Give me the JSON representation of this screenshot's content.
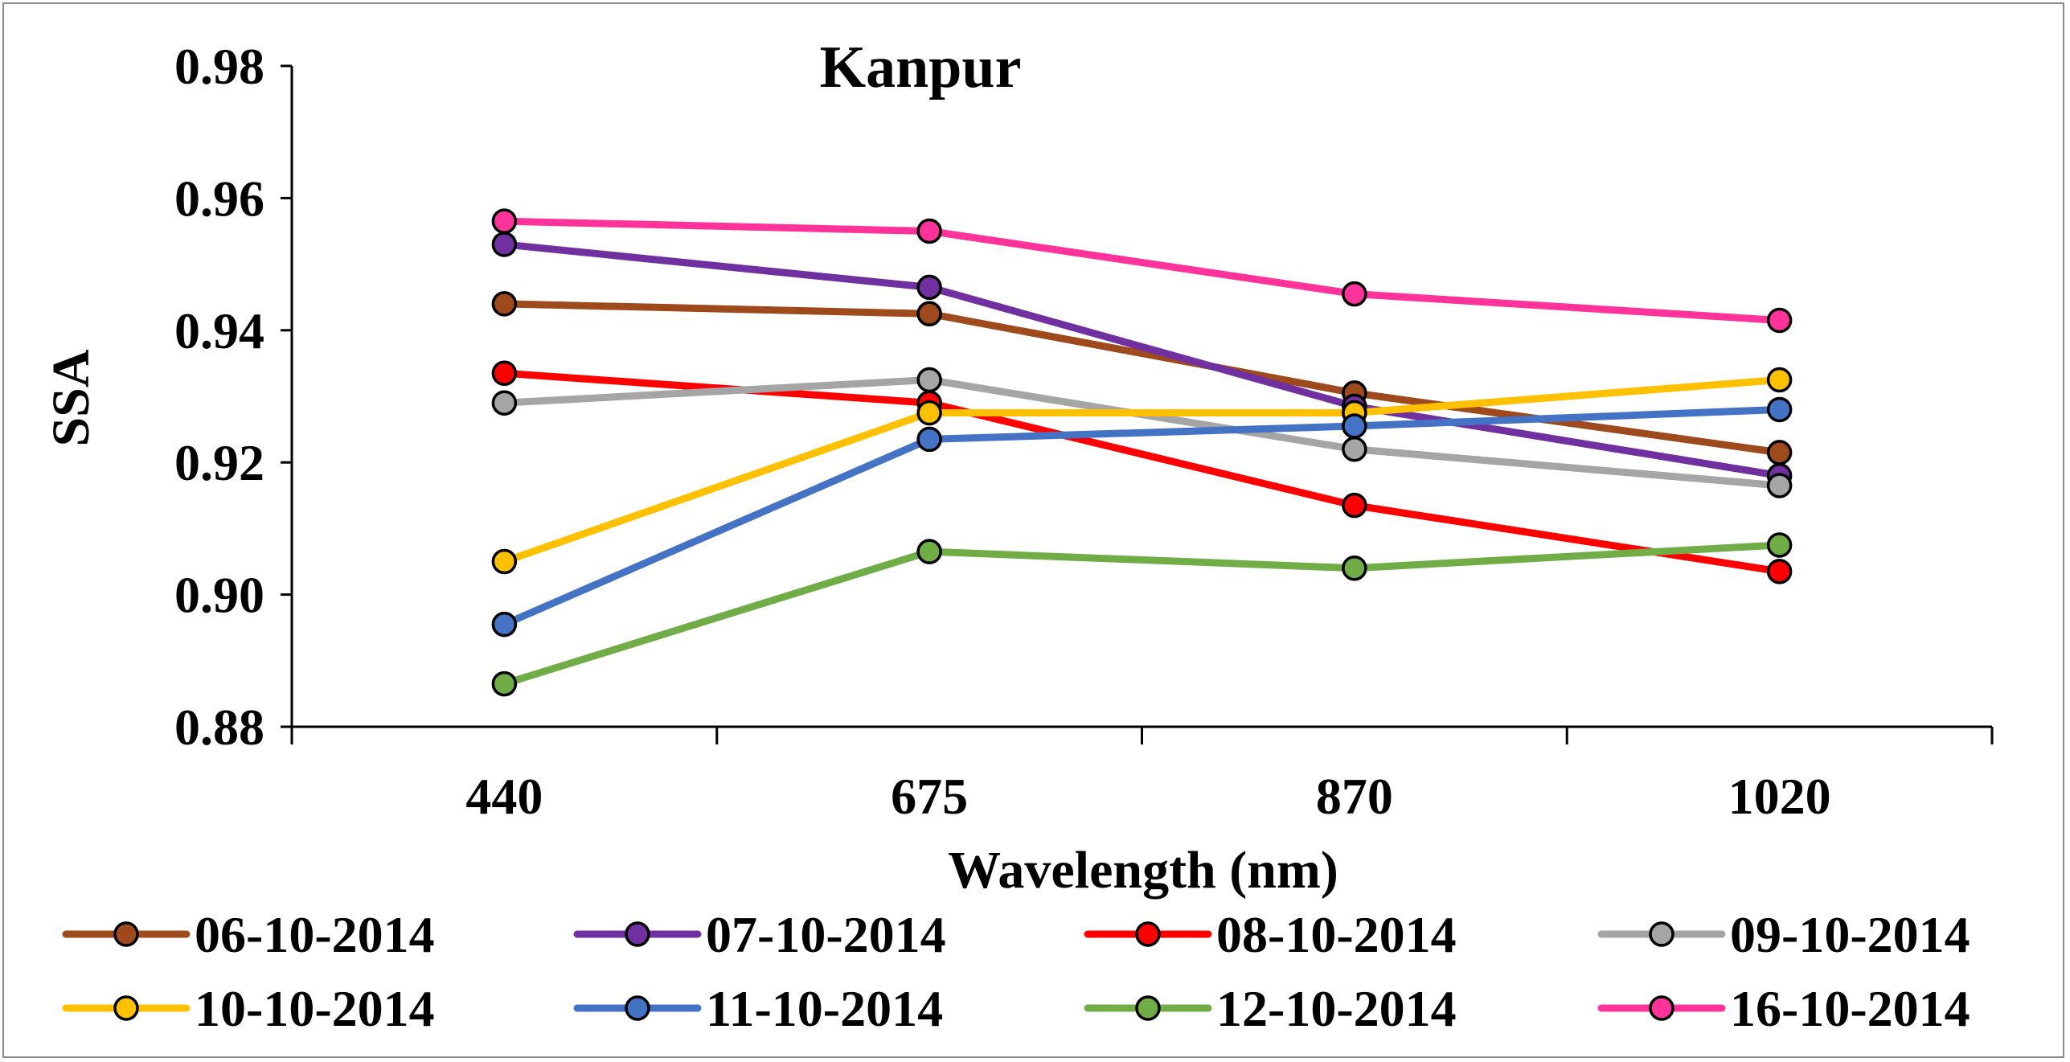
{
  "chart_data": {
    "type": "line",
    "title": "Kanpur",
    "xlabel": "Wavelength (nm)",
    "ylabel": "SSA",
    "categories": [
      "440",
      "675",
      "870",
      "1020"
    ],
    "ylim": [
      0.88,
      0.98
    ],
    "yticks": [
      "0.88",
      "0.90",
      "0.92",
      "0.94",
      "0.96",
      "0.98"
    ],
    "ytick_values": [
      0.88,
      0.9,
      0.92,
      0.94,
      0.96,
      0.98
    ],
    "grid": false,
    "legend_position": "bottom",
    "series": [
      {
        "name": "06-10-2014",
        "color": "#9E4A1C",
        "values": [
          0.944,
          0.9425,
          0.9305,
          0.9215
        ]
      },
      {
        "name": "07-10-2014",
        "color": "#7030A0",
        "values": [
          0.953,
          0.9465,
          0.9285,
          0.918
        ]
      },
      {
        "name": "08-10-2014",
        "color": "#FF0000",
        "values": [
          0.9335,
          0.929,
          0.9135,
          0.9035
        ]
      },
      {
        "name": "09-10-2014",
        "color": "#A5A5A5",
        "values": [
          0.929,
          0.9325,
          0.922,
          0.9165
        ]
      },
      {
        "name": "10-10-2014",
        "color": "#FFC000",
        "values": [
          0.905,
          0.9275,
          0.9275,
          0.9325
        ]
      },
      {
        "name": "11-10-2014",
        "color": "#4472C4",
        "values": [
          0.8955,
          0.9235,
          0.9255,
          0.928
        ]
      },
      {
        "name": "12-10-2014",
        "color": "#70AD47",
        "values": [
          0.8865,
          0.9065,
          0.904,
          0.9075
        ]
      },
      {
        "name": "16-10-2014",
        "color": "#FF3399",
        "values": [
          0.9565,
          0.955,
          0.9455,
          0.9415
        ]
      }
    ]
  }
}
